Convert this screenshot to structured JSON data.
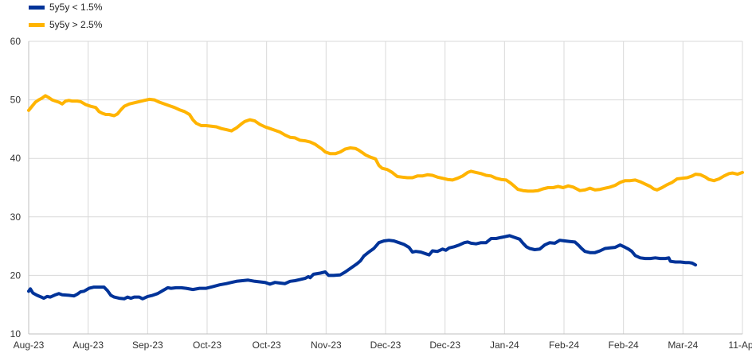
{
  "chart_data": {
    "type": "line",
    "title": "",
    "xlabel": "",
    "ylabel": "",
    "ylim": [
      10,
      60
    ],
    "yticks": [
      10,
      20,
      30,
      40,
      50,
      60
    ],
    "grid": true,
    "legend": "top-left",
    "x_tick_labels": [
      "Aug-23",
      "Aug-23",
      "Sep-23",
      "Oct-23",
      "Oct-23",
      "Nov-23",
      "Dec-23",
      "Dec-23",
      "Jan-24",
      "Feb-24",
      "Feb-24",
      "Mar-24",
      "11-Apr"
    ],
    "series": [
      {
        "name": "5y5y < 1.5%",
        "color": "#003399",
        "points": [
          [
            0,
            17.3
          ],
          [
            2,
            17.7
          ],
          [
            5,
            17.0
          ],
          [
            10,
            16.6
          ],
          [
            15,
            16.3
          ],
          [
            18,
            16.1
          ],
          [
            22,
            16.4
          ],
          [
            26,
            16.3
          ],
          [
            32,
            16.7
          ],
          [
            36,
            16.9
          ],
          [
            40,
            16.7
          ],
          [
            48,
            16.6
          ],
          [
            54,
            16.5
          ],
          [
            58,
            16.8
          ],
          [
            62,
            17.2
          ],
          [
            66,
            17.3
          ],
          [
            72,
            17.8
          ],
          [
            78,
            18.0
          ],
          [
            84,
            18.0
          ],
          [
            90,
            18.0
          ],
          [
            94,
            17.4
          ],
          [
            98,
            16.6
          ],
          [
            102,
            16.3
          ],
          [
            108,
            16.1
          ],
          [
            114,
            16.0
          ],
          [
            118,
            16.3
          ],
          [
            122,
            16.1
          ],
          [
            126,
            16.3
          ],
          [
            132,
            16.3
          ],
          [
            136,
            16.0
          ],
          [
            142,
            16.4
          ],
          [
            148,
            16.6
          ],
          [
            154,
            16.9
          ],
          [
            160,
            17.4
          ],
          [
            166,
            17.9
          ],
          [
            170,
            17.8
          ],
          [
            176,
            17.9
          ],
          [
            182,
            17.9
          ],
          [
            188,
            17.8
          ],
          [
            196,
            17.6
          ],
          [
            204,
            17.8
          ],
          [
            212,
            17.8
          ],
          [
            220,
            18.1
          ],
          [
            228,
            18.4
          ],
          [
            236,
            18.6
          ],
          [
            242,
            18.8
          ],
          [
            248,
            19.0
          ],
          [
            255,
            19.1
          ],
          [
            262,
            19.2
          ],
          [
            270,
            19.0
          ],
          [
            276,
            18.9
          ],
          [
            282,
            18.8
          ],
          [
            288,
            18.5
          ],
          [
            294,
            18.8
          ],
          [
            300,
            18.7
          ],
          [
            306,
            18.6
          ],
          [
            312,
            19.0
          ],
          [
            318,
            19.1
          ],
          [
            324,
            19.3
          ],
          [
            330,
            19.5
          ],
          [
            334,
            19.8
          ],
          [
            336,
            19.6
          ],
          [
            340,
            20.2
          ],
          [
            348,
            20.4
          ],
          [
            354,
            20.6
          ],
          [
            358,
            20.0
          ],
          [
            364,
            20.0
          ],
          [
            372,
            20.1
          ],
          [
            378,
            20.6
          ],
          [
            386,
            21.4
          ],
          [
            392,
            22.0
          ],
          [
            396,
            22.5
          ],
          [
            400,
            23.3
          ],
          [
            406,
            24.0
          ],
          [
            412,
            24.6
          ],
          [
            418,
            25.6
          ],
          [
            424,
            25.9
          ],
          [
            430,
            26.0
          ],
          [
            436,
            25.9
          ],
          [
            442,
            25.6
          ],
          [
            448,
            25.3
          ],
          [
            454,
            24.8
          ],
          [
            458,
            24.0
          ],
          [
            462,
            24.1
          ],
          [
            468,
            24.0
          ],
          [
            474,
            23.7
          ],
          [
            478,
            23.5
          ],
          [
            482,
            24.2
          ],
          [
            488,
            24.1
          ],
          [
            494,
            24.5
          ],
          [
            498,
            24.3
          ],
          [
            502,
            24.7
          ],
          [
            508,
            24.9
          ],
          [
            514,
            25.2
          ],
          [
            520,
            25.6
          ],
          [
            524,
            25.7
          ],
          [
            528,
            25.5
          ],
          [
            534,
            25.4
          ],
          [
            540,
            25.6
          ],
          [
            546,
            25.6
          ],
          [
            552,
            26.3
          ],
          [
            558,
            26.3
          ],
          [
            564,
            26.5
          ],
          [
            568,
            26.6
          ],
          [
            574,
            26.8
          ],
          [
            580,
            26.5
          ],
          [
            586,
            26.2
          ],
          [
            590,
            25.5
          ],
          [
            594,
            24.9
          ],
          [
            598,
            24.6
          ],
          [
            604,
            24.4
          ],
          [
            610,
            24.5
          ],
          [
            616,
            25.2
          ],
          [
            622,
            25.6
          ],
          [
            628,
            25.5
          ],
          [
            634,
            26.0
          ],
          [
            640,
            25.9
          ],
          [
            646,
            25.8
          ],
          [
            652,
            25.7
          ],
          [
            656,
            25.2
          ],
          [
            660,
            24.6
          ],
          [
            664,
            24.1
          ],
          [
            670,
            23.9
          ],
          [
            676,
            23.9
          ],
          [
            682,
            24.2
          ],
          [
            688,
            24.6
          ],
          [
            694,
            24.7
          ],
          [
            700,
            24.8
          ],
          [
            706,
            25.2
          ],
          [
            712,
            24.8
          ],
          [
            716,
            24.5
          ],
          [
            720,
            24.1
          ],
          [
            724,
            23.4
          ],
          [
            730,
            23.0
          ],
          [
            736,
            22.9
          ],
          [
            742,
            22.9
          ],
          [
            748,
            23.0
          ],
          [
            754,
            22.9
          ],
          [
            760,
            22.9
          ],
          [
            764,
            23.0
          ],
          [
            766,
            22.4
          ],
          [
            772,
            22.3
          ],
          [
            778,
            22.3
          ],
          [
            784,
            22.2
          ],
          [
            788,
            22.2
          ],
          [
            792,
            22.1
          ],
          [
            796,
            21.8
          ]
        ]
      },
      {
        "name": "5y5y > 2.5%",
        "color": "#ffb400",
        "points": [
          [
            0,
            48.2
          ],
          [
            4,
            48.9
          ],
          [
            8,
            49.6
          ],
          [
            12,
            50.0
          ],
          [
            16,
            50.3
          ],
          [
            20,
            50.7
          ],
          [
            24,
            50.4
          ],
          [
            28,
            50.0
          ],
          [
            32,
            49.8
          ],
          [
            36,
            49.6
          ],
          [
            40,
            49.3
          ],
          [
            44,
            49.8
          ],
          [
            48,
            49.9
          ],
          [
            52,
            49.8
          ],
          [
            58,
            49.8
          ],
          [
            62,
            49.7
          ],
          [
            68,
            49.2
          ],
          [
            74,
            48.9
          ],
          [
            80,
            48.7
          ],
          [
            84,
            48.0
          ],
          [
            88,
            47.7
          ],
          [
            92,
            47.5
          ],
          [
            96,
            47.5
          ],
          [
            102,
            47.3
          ],
          [
            106,
            47.6
          ],
          [
            110,
            48.3
          ],
          [
            114,
            48.9
          ],
          [
            120,
            49.3
          ],
          [
            126,
            49.5
          ],
          [
            132,
            49.7
          ],
          [
            138,
            49.9
          ],
          [
            144,
            50.1
          ],
          [
            150,
            50.0
          ],
          [
            156,
            49.6
          ],
          [
            162,
            49.3
          ],
          [
            168,
            49.0
          ],
          [
            174,
            48.7
          ],
          [
            180,
            48.3
          ],
          [
            186,
            48.0
          ],
          [
            192,
            47.5
          ],
          [
            196,
            46.6
          ],
          [
            200,
            46.0
          ],
          [
            206,
            45.6
          ],
          [
            212,
            45.6
          ],
          [
            218,
            45.5
          ],
          [
            224,
            45.4
          ],
          [
            230,
            45.1
          ],
          [
            236,
            44.9
          ],
          [
            242,
            44.7
          ],
          [
            248,
            45.2
          ],
          [
            254,
            45.9
          ],
          [
            258,
            46.3
          ],
          [
            264,
            46.6
          ],
          [
            270,
            46.4
          ],
          [
            276,
            45.8
          ],
          [
            282,
            45.4
          ],
          [
            288,
            45.1
          ],
          [
            294,
            44.8
          ],
          [
            300,
            44.5
          ],
          [
            306,
            44.0
          ],
          [
            312,
            43.6
          ],
          [
            318,
            43.5
          ],
          [
            324,
            43.1
          ],
          [
            330,
            43.0
          ],
          [
            336,
            42.8
          ],
          [
            342,
            42.4
          ],
          [
            346,
            42.0
          ],
          [
            350,
            41.6
          ],
          [
            354,
            41.1
          ],
          [
            360,
            40.8
          ],
          [
            366,
            40.8
          ],
          [
            372,
            41.1
          ],
          [
            378,
            41.6
          ],
          [
            384,
            41.8
          ],
          [
            390,
            41.7
          ],
          [
            394,
            41.4
          ],
          [
            398,
            41.0
          ],
          [
            402,
            40.6
          ],
          [
            408,
            40.2
          ],
          [
            414,
            39.9
          ],
          [
            418,
            38.8
          ],
          [
            422,
            38.3
          ],
          [
            428,
            38.1
          ],
          [
            434,
            37.6
          ],
          [
            440,
            36.9
          ],
          [
            446,
            36.8
          ],
          [
            452,
            36.7
          ],
          [
            458,
            36.7
          ],
          [
            464,
            37.0
          ],
          [
            470,
            37.0
          ],
          [
            476,
            37.2
          ],
          [
            482,
            37.1
          ],
          [
            488,
            36.8
          ],
          [
            494,
            36.6
          ],
          [
            500,
            36.4
          ],
          [
            506,
            36.3
          ],
          [
            512,
            36.6
          ],
          [
            518,
            37.0
          ],
          [
            524,
            37.6
          ],
          [
            528,
            37.8
          ],
          [
            534,
            37.6
          ],
          [
            540,
            37.4
          ],
          [
            546,
            37.1
          ],
          [
            552,
            37.0
          ],
          [
            558,
            36.6
          ],
          [
            564,
            36.4
          ],
          [
            570,
            36.3
          ],
          [
            576,
            35.7
          ],
          [
            580,
            35.2
          ],
          [
            584,
            34.7
          ],
          [
            590,
            34.5
          ],
          [
            596,
            34.4
          ],
          [
            602,
            34.4
          ],
          [
            608,
            34.5
          ],
          [
            614,
            34.8
          ],
          [
            620,
            35.0
          ],
          [
            626,
            35.0
          ],
          [
            632,
            35.2
          ],
          [
            638,
            35.0
          ],
          [
            644,
            35.3
          ],
          [
            650,
            35.1
          ],
          [
            654,
            34.8
          ],
          [
            658,
            34.5
          ],
          [
            664,
            34.6
          ],
          [
            670,
            34.9
          ],
          [
            676,
            34.6
          ],
          [
            682,
            34.7
          ],
          [
            688,
            34.9
          ],
          [
            694,
            35.1
          ],
          [
            700,
            35.4
          ],
          [
            706,
            35.9
          ],
          [
            712,
            36.2
          ],
          [
            718,
            36.2
          ],
          [
            724,
            36.3
          ],
          [
            730,
            36.0
          ],
          [
            736,
            35.6
          ],
          [
            742,
            35.2
          ],
          [
            746,
            34.8
          ],
          [
            750,
            34.6
          ],
          [
            756,
            35.0
          ],
          [
            762,
            35.5
          ],
          [
            768,
            35.9
          ],
          [
            774,
            36.5
          ],
          [
            780,
            36.6
          ],
          [
            786,
            36.7
          ],
          [
            792,
            37.0
          ],
          [
            796,
            37.3
          ],
          [
            802,
            37.2
          ],
          [
            808,
            36.8
          ],
          [
            812,
            36.4
          ],
          [
            818,
            36.2
          ],
          [
            824,
            36.5
          ],
          [
            830,
            37.0
          ],
          [
            836,
            37.4
          ],
          [
            840,
            37.5
          ],
          [
            846,
            37.3
          ],
          [
            852,
            37.6
          ]
        ]
      }
    ]
  }
}
